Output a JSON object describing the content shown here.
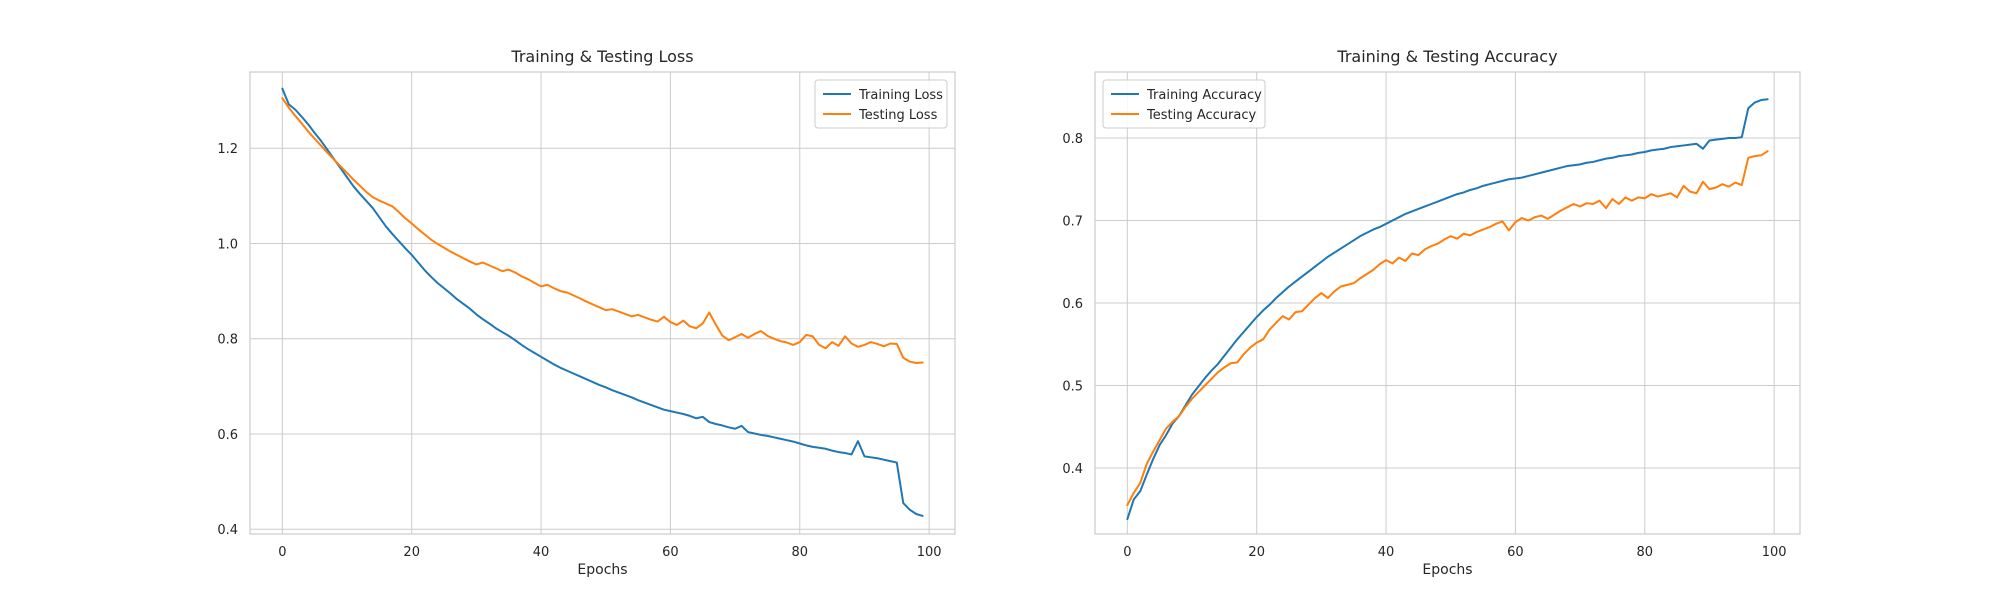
{
  "figure": {
    "width_hint": "wide figure with two side-by-side line charts"
  },
  "colors": {
    "train": "#1f77b4",
    "test": "#ff7f0e",
    "grid": "#cccccc",
    "text": "#262626"
  },
  "chart_data": [
    {
      "type": "line",
      "title": "Training & Testing Loss",
      "xlabel": "Epochs",
      "ylabel": "",
      "xlim": [
        -5,
        104
      ],
      "ylim": [
        0.39,
        1.36
      ],
      "xticks": [
        0,
        20,
        40,
        60,
        80,
        100
      ],
      "yticks": [
        0.4,
        0.6,
        0.8,
        1.0,
        1.2
      ],
      "ytick_labels": [
        "0.4",
        "0.6",
        "0.8",
        "1.0",
        "1.2"
      ],
      "grid": true,
      "legend": "upper-right",
      "series": [
        {
          "name": "Training Loss",
          "color": "#1f77b4",
          "x": [
            0,
            1,
            2,
            3,
            4,
            5,
            6,
            7,
            8,
            9,
            10,
            11,
            12,
            13,
            14,
            15,
            16,
            17,
            18,
            19,
            20,
            21,
            22,
            23,
            24,
            25,
            26,
            27,
            28,
            29,
            30,
            31,
            32,
            33,
            34,
            35,
            36,
            37,
            38,
            39,
            40,
            41,
            42,
            43,
            44,
            45,
            46,
            47,
            48,
            49,
            50,
            51,
            52,
            53,
            54,
            55,
            56,
            57,
            58,
            59,
            60,
            61,
            62,
            63,
            64,
            65,
            66,
            67,
            68,
            69,
            70,
            71,
            72,
            73,
            74,
            75,
            76,
            77,
            78,
            79,
            80,
            81,
            82,
            83,
            84,
            85,
            86,
            87,
            88,
            89,
            90,
            91,
            92,
            93,
            94,
            95,
            96,
            97,
            98,
            99
          ],
          "values": [
            1.325,
            1.292,
            1.281,
            1.266,
            1.25,
            1.232,
            1.215,
            1.196,
            1.177,
            1.158,
            1.139,
            1.12,
            1.104,
            1.089,
            1.074,
            1.055,
            1.036,
            1.02,
            1.005,
            0.99,
            0.976,
            0.96,
            0.944,
            0.93,
            0.917,
            0.906,
            0.895,
            0.883,
            0.873,
            0.863,
            0.851,
            0.841,
            0.832,
            0.822,
            0.814,
            0.806,
            0.797,
            0.787,
            0.778,
            0.77,
            0.762,
            0.754,
            0.746,
            0.739,
            0.733,
            0.727,
            0.721,
            0.715,
            0.709,
            0.703,
            0.698,
            0.692,
            0.687,
            0.682,
            0.677,
            0.671,
            0.666,
            0.661,
            0.656,
            0.651,
            0.648,
            0.645,
            0.642,
            0.638,
            0.633,
            0.636,
            0.625,
            0.621,
            0.618,
            0.614,
            0.611,
            0.617,
            0.604,
            0.601,
            0.598,
            0.596,
            0.593,
            0.59,
            0.587,
            0.584,
            0.58,
            0.576,
            0.573,
            0.571,
            0.569,
            0.565,
            0.562,
            0.56,
            0.557,
            0.585,
            0.553,
            0.551,
            0.549,
            0.546,
            0.543,
            0.54,
            0.455,
            0.441,
            0.432,
            0.428
          ]
        },
        {
          "name": "Testing Loss",
          "color": "#ff7f0e",
          "x": [
            0,
            1,
            2,
            3,
            4,
            5,
            6,
            7,
            8,
            9,
            10,
            11,
            12,
            13,
            14,
            15,
            16,
            17,
            18,
            19,
            20,
            21,
            22,
            23,
            24,
            25,
            26,
            27,
            28,
            29,
            30,
            31,
            32,
            33,
            34,
            35,
            36,
            37,
            38,
            39,
            40,
            41,
            42,
            43,
            44,
            45,
            46,
            47,
            48,
            49,
            50,
            51,
            52,
            53,
            54,
            55,
            56,
            57,
            58,
            59,
            60,
            61,
            62,
            63,
            64,
            65,
            66,
            67,
            68,
            69,
            70,
            71,
            72,
            73,
            74,
            75,
            76,
            77,
            78,
            79,
            80,
            81,
            82,
            83,
            84,
            85,
            86,
            87,
            88,
            89,
            90,
            91,
            92,
            93,
            94,
            95,
            96,
            97,
            98,
            99
          ],
          "values": [
            1.305,
            1.285,
            1.268,
            1.252,
            1.235,
            1.22,
            1.205,
            1.19,
            1.176,
            1.162,
            1.148,
            1.134,
            1.121,
            1.108,
            1.097,
            1.09,
            1.084,
            1.078,
            1.066,
            1.053,
            1.042,
            1.03,
            1.019,
            1.008,
            0.999,
            0.991,
            0.983,
            0.976,
            0.969,
            0.962,
            0.956,
            0.96,
            0.954,
            0.948,
            0.942,
            0.945,
            0.939,
            0.931,
            0.925,
            0.917,
            0.91,
            0.913,
            0.906,
            0.9,
            0.897,
            0.891,
            0.885,
            0.878,
            0.872,
            0.866,
            0.86,
            0.862,
            0.857,
            0.852,
            0.847,
            0.85,
            0.845,
            0.84,
            0.836,
            0.846,
            0.835,
            0.829,
            0.838,
            0.826,
            0.822,
            0.832,
            0.855,
            0.83,
            0.807,
            0.797,
            0.803,
            0.81,
            0.802,
            0.81,
            0.816,
            0.806,
            0.8,
            0.795,
            0.792,
            0.787,
            0.793,
            0.808,
            0.805,
            0.787,
            0.78,
            0.793,
            0.785,
            0.805,
            0.79,
            0.783,
            0.787,
            0.793,
            0.789,
            0.784,
            0.79,
            0.789,
            0.76,
            0.752,
            0.749,
            0.75
          ]
        }
      ]
    },
    {
      "type": "line",
      "title": "Training & Testing Accuracy",
      "xlabel": "Epochs",
      "ylabel": "",
      "xlim": [
        -5,
        104
      ],
      "ylim": [
        0.32,
        0.88
      ],
      "xticks": [
        0,
        20,
        40,
        60,
        80,
        100
      ],
      "yticks": [
        0.4,
        0.5,
        0.6,
        0.7,
        0.8
      ],
      "ytick_labels": [
        "0.4",
        "0.5",
        "0.6",
        "0.7",
        "0.8"
      ],
      "grid": true,
      "legend": "upper-left",
      "series": [
        {
          "name": "Training Accuracy",
          "color": "#1f77b4",
          "x": [
            0,
            1,
            2,
            3,
            4,
            5,
            6,
            7,
            8,
            9,
            10,
            11,
            12,
            13,
            14,
            15,
            16,
            17,
            18,
            19,
            20,
            21,
            22,
            23,
            24,
            25,
            26,
            27,
            28,
            29,
            30,
            31,
            32,
            33,
            34,
            35,
            36,
            37,
            38,
            39,
            40,
            41,
            42,
            43,
            44,
            45,
            46,
            47,
            48,
            49,
            50,
            51,
            52,
            53,
            54,
            55,
            56,
            57,
            58,
            59,
            60,
            61,
            62,
            63,
            64,
            65,
            66,
            67,
            68,
            69,
            70,
            71,
            72,
            73,
            74,
            75,
            76,
            77,
            78,
            79,
            80,
            81,
            82,
            83,
            84,
            85,
            86,
            87,
            88,
            89,
            90,
            91,
            92,
            93,
            94,
            95,
            96,
            97,
            98,
            99
          ],
          "values": [
            0.338,
            0.362,
            0.372,
            0.392,
            0.411,
            0.428,
            0.44,
            0.454,
            0.463,
            0.476,
            0.489,
            0.499,
            0.509,
            0.518,
            0.526,
            0.536,
            0.546,
            0.556,
            0.565,
            0.574,
            0.583,
            0.591,
            0.598,
            0.606,
            0.613,
            0.62,
            0.626,
            0.632,
            0.638,
            0.644,
            0.65,
            0.656,
            0.661,
            0.666,
            0.671,
            0.676,
            0.681,
            0.685,
            0.689,
            0.692,
            0.696,
            0.7,
            0.704,
            0.708,
            0.711,
            0.714,
            0.717,
            0.72,
            0.723,
            0.726,
            0.729,
            0.732,
            0.734,
            0.737,
            0.739,
            0.742,
            0.744,
            0.746,
            0.748,
            0.75,
            0.751,
            0.752,
            0.754,
            0.756,
            0.758,
            0.76,
            0.762,
            0.764,
            0.766,
            0.767,
            0.768,
            0.77,
            0.771,
            0.773,
            0.775,
            0.776,
            0.778,
            0.779,
            0.78,
            0.782,
            0.783,
            0.785,
            0.786,
            0.787,
            0.789,
            0.79,
            0.791,
            0.792,
            0.793,
            0.787,
            0.797,
            0.798,
            0.799,
            0.8,
            0.8,
            0.801,
            0.836,
            0.843,
            0.846,
            0.847
          ]
        },
        {
          "name": "Testing Accuracy",
          "color": "#ff7f0e",
          "x": [
            0,
            1,
            2,
            3,
            4,
            5,
            6,
            7,
            8,
            9,
            10,
            11,
            12,
            13,
            14,
            15,
            16,
            17,
            18,
            19,
            20,
            21,
            22,
            23,
            24,
            25,
            26,
            27,
            28,
            29,
            30,
            31,
            32,
            33,
            34,
            35,
            36,
            37,
            38,
            39,
            40,
            41,
            42,
            43,
            44,
            45,
            46,
            47,
            48,
            49,
            50,
            51,
            52,
            53,
            54,
            55,
            56,
            57,
            58,
            59,
            60,
            61,
            62,
            63,
            64,
            65,
            66,
            67,
            68,
            69,
            70,
            71,
            72,
            73,
            74,
            75,
            76,
            77,
            78,
            79,
            80,
            81,
            82,
            83,
            84,
            85,
            86,
            87,
            88,
            89,
            90,
            91,
            92,
            93,
            94,
            95,
            96,
            97,
            98,
            99
          ],
          "values": [
            0.355,
            0.37,
            0.382,
            0.405,
            0.42,
            0.434,
            0.448,
            0.456,
            0.463,
            0.474,
            0.484,
            0.492,
            0.5,
            0.508,
            0.516,
            0.522,
            0.527,
            0.528,
            0.538,
            0.546,
            0.552,
            0.556,
            0.568,
            0.576,
            0.584,
            0.58,
            0.589,
            0.59,
            0.598,
            0.606,
            0.612,
            0.606,
            0.614,
            0.62,
            0.622,
            0.624,
            0.63,
            0.635,
            0.64,
            0.647,
            0.652,
            0.648,
            0.655,
            0.651,
            0.66,
            0.658,
            0.665,
            0.669,
            0.672,
            0.677,
            0.681,
            0.678,
            0.684,
            0.682,
            0.686,
            0.689,
            0.692,
            0.696,
            0.699,
            0.688,
            0.698,
            0.703,
            0.7,
            0.704,
            0.706,
            0.702,
            0.707,
            0.712,
            0.716,
            0.72,
            0.717,
            0.721,
            0.72,
            0.724,
            0.715,
            0.726,
            0.72,
            0.728,
            0.724,
            0.728,
            0.727,
            0.732,
            0.729,
            0.731,
            0.733,
            0.728,
            0.742,
            0.735,
            0.733,
            0.747,
            0.738,
            0.74,
            0.744,
            0.741,
            0.746,
            0.743,
            0.776,
            0.778,
            0.779,
            0.784
          ]
        }
      ]
    }
  ]
}
